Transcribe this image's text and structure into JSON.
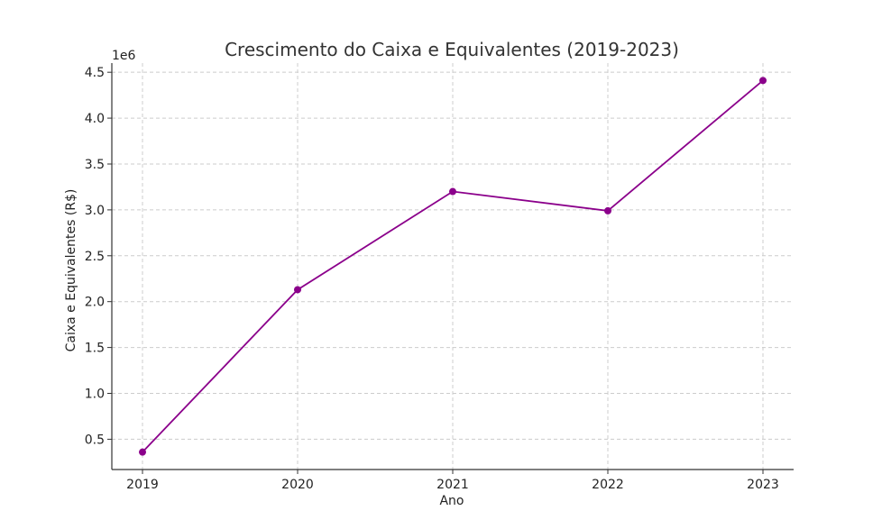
{
  "chart_data": {
    "type": "line",
    "title": "Crescimento do Caixa e Equivalentes (2019-2023)",
    "xlabel": "Ano",
    "ylabel": "Caixa e Equivalentes (R$)",
    "offset_label": "1e6",
    "x": [
      "2019",
      "2020",
      "2021",
      "2022",
      "2023"
    ],
    "series": [
      {
        "values": [
          360000,
          2130000,
          3200000,
          2990000,
          4410000
        ]
      }
    ],
    "yticks": [
      {
        "value": 500000,
        "label": "0.5"
      },
      {
        "value": 1000000,
        "label": "1.0"
      },
      {
        "value": 1500000,
        "label": "1.5"
      },
      {
        "value": 2000000,
        "label": "2.0"
      },
      {
        "value": 2500000,
        "label": "2.5"
      },
      {
        "value": 3000000,
        "label": "3.0"
      },
      {
        "value": 3500000,
        "label": "3.5"
      },
      {
        "value": 4000000,
        "label": "4.0"
      },
      {
        "value": 4500000,
        "label": "4.5"
      }
    ],
    "ylim": [
      170000,
      4600000
    ],
    "grid": true,
    "line_color": "#8b008b"
  }
}
